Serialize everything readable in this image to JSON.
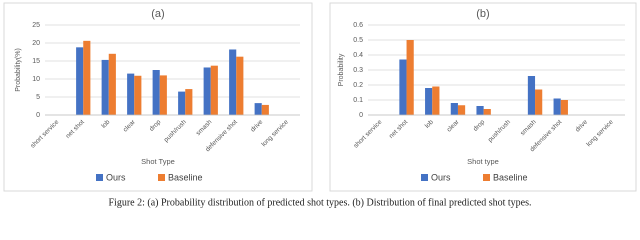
{
  "caption": "Figure 2: (a) Probability distribution of predicted shot types. (b) Distribution of final predicted shot types.",
  "chart_data": [
    {
      "type": "bar",
      "title": "(a)",
      "x_label": "Shot Type",
      "y_label": "Probability(%)",
      "categories": [
        "short service",
        "net shot",
        "lob",
        "clear",
        "drop",
        "push/rush",
        "smash",
        "defensive shot",
        "drive",
        "long service"
      ],
      "series": [
        {
          "name": "Ours",
          "color": "#4472c4",
          "values": [
            0,
            18.8,
            15.3,
            11.5,
            12.5,
            6.5,
            13.2,
            18.2,
            3.3,
            0
          ]
        },
        {
          "name": "Baseline",
          "color": "#ed7d31",
          "values": [
            0,
            20.6,
            17,
            10.9,
            11,
            7.2,
            13.7,
            16.2,
            2.8,
            0
          ]
        }
      ],
      "ylim": [
        0,
        25
      ],
      "yticks": [
        0,
        5,
        10,
        15,
        20,
        25
      ],
      "grid": true,
      "legend": "bottom"
    },
    {
      "type": "bar",
      "title": "(b)",
      "x_label": "Shot type",
      "y_label": "Probability",
      "categories": [
        "short service",
        "net shot",
        "lob",
        "clear",
        "drop",
        "push/rush",
        "smash",
        "defensive shot",
        "drive",
        "long service"
      ],
      "series": [
        {
          "name": "Ours",
          "color": "#4472c4",
          "values": [
            0,
            0.37,
            0.18,
            0.08,
            0.06,
            0,
            0.26,
            0.11,
            0,
            0
          ]
        },
        {
          "name": "Baseline",
          "color": "#ed7d31",
          "values": [
            0,
            0.5,
            0.19,
            0.065,
            0.04,
            0,
            0.17,
            0.1,
            0,
            0
          ]
        }
      ],
      "ylim": [
        0,
        0.6
      ],
      "yticks": [
        0,
        0.1,
        0.2,
        0.3,
        0.4,
        0.5,
        0.6
      ],
      "grid": true,
      "legend": "bottom"
    }
  ]
}
